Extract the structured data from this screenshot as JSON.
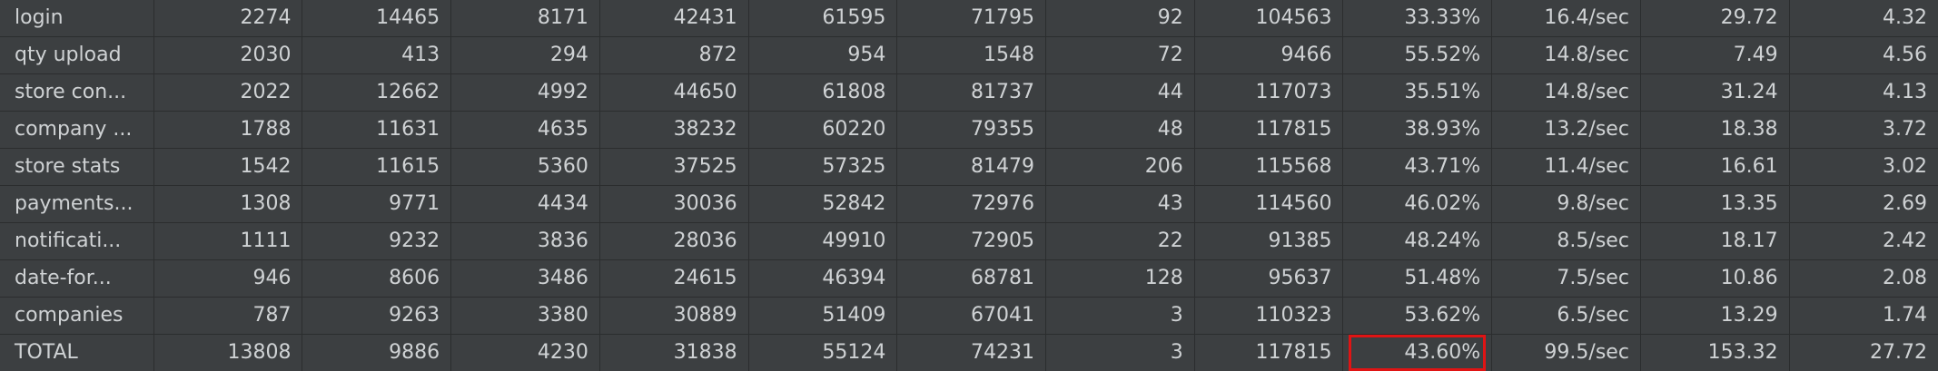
{
  "table": {
    "rows": [
      {
        "label": "login",
        "cells": [
          "2274",
          "14465",
          "8171",
          "42431",
          "61595",
          "71795",
          "92",
          "104563",
          "33.33%",
          "16.4/sec",
          "29.72",
          "4.32"
        ]
      },
      {
        "label": "qty upload",
        "cells": [
          "2030",
          "413",
          "294",
          "872",
          "954",
          "1548",
          "72",
          "9466",
          "55.52%",
          "14.8/sec",
          "7.49",
          "4.56"
        ]
      },
      {
        "label": "store con...",
        "cells": [
          "2022",
          "12662",
          "4992",
          "44650",
          "61808",
          "81737",
          "44",
          "117073",
          "35.51%",
          "14.8/sec",
          "31.24",
          "4.13"
        ]
      },
      {
        "label": "company ...",
        "cells": [
          "1788",
          "11631",
          "4635",
          "38232",
          "60220",
          "79355",
          "48",
          "117815",
          "38.93%",
          "13.2/sec",
          "18.38",
          "3.72"
        ]
      },
      {
        "label": "store stats",
        "cells": [
          "1542",
          "11615",
          "5360",
          "37525",
          "57325",
          "81479",
          "206",
          "115568",
          "43.71%",
          "11.4/sec",
          "16.61",
          "3.02"
        ]
      },
      {
        "label": "payments...",
        "cells": [
          "1308",
          "9771",
          "4434",
          "30036",
          "52842",
          "72976",
          "43",
          "114560",
          "46.02%",
          "9.8/sec",
          "13.35",
          "2.69"
        ]
      },
      {
        "label": "notificati...",
        "cells": [
          "1111",
          "9232",
          "3836",
          "28036",
          "49910",
          "72905",
          "22",
          "91385",
          "48.24%",
          "8.5/sec",
          "18.17",
          "2.42"
        ]
      },
      {
        "label": "date-for...",
        "cells": [
          "946",
          "8606",
          "3486",
          "24615",
          "46394",
          "68781",
          "128",
          "95637",
          "51.48%",
          "7.5/sec",
          "10.86",
          "2.08"
        ]
      },
      {
        "label": "companies",
        "cells": [
          "787",
          "9263",
          "3380",
          "30889",
          "51409",
          "67041",
          "3",
          "110323",
          "53.62%",
          "6.5/sec",
          "13.29",
          "1.74"
        ]
      }
    ],
    "total": {
      "label": "TOTAL",
      "cells": [
        "13808",
        "9886",
        "4230",
        "31838",
        "55124",
        "74231",
        "3",
        "117815",
        "43.60%",
        "99.5/sec",
        "153.32",
        "27.72"
      ]
    }
  },
  "colors": {
    "background": "#3c3f41",
    "text": "#cfd2d4",
    "grid_line": "#2b2d2e",
    "highlight": "#e01414"
  }
}
